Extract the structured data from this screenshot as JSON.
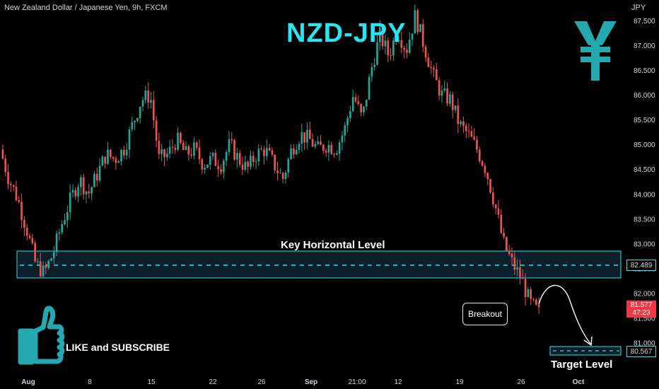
{
  "header": {
    "symbol": "New Zealand Dollar / Japanese Yen, 9h, FXCM",
    "currency": "JPY",
    "title": "NZD-JPY"
  },
  "annotations": {
    "key_level_label": "Key Horizontal Level",
    "target_label": "Target Level",
    "breakout_label": "Breakout",
    "cta": "LIKE and SUBSCRIBE"
  },
  "price_tags": {
    "key_level": "82.489",
    "target": "80.567",
    "current_price": "81.577",
    "countdown": "47:23"
  },
  "icons": [
    "yen-icon",
    "thumbs-up-icon",
    "arrow-curve-icon"
  ],
  "colors": {
    "up": "#26a69a",
    "down": "#ef5350",
    "accent": "#25e6f1",
    "current": "#f23645"
  },
  "chart_data": {
    "type": "candlestick",
    "y_axis_ticks": [
      "87.500",
      "87.000",
      "86.500",
      "86.000",
      "85.500",
      "85.000",
      "84.500",
      "84.000",
      "83.500",
      "83.000",
      "82.500",
      "82.000",
      "81.500",
      "81.000"
    ],
    "x_axis_ticks": [
      "Aug",
      "8",
      "15",
      "22",
      "26",
      "Sep",
      "21:00",
      "12",
      "19",
      "26",
      "Oct"
    ],
    "ylim": [
      80.35,
      87.8
    ],
    "key_level": 82.489,
    "key_zone": [
      82.18,
      82.78
    ],
    "target_level": 80.567,
    "current_price": 81.577,
    "grid": false,
    "close_path": [
      84.9,
      84.3,
      83.9,
      83.3,
      82.6,
      82.4,
      82.8,
      83.4,
      83.9,
      84.3,
      84.0,
      84.4,
      84.8,
      84.7,
      84.9,
      85.4,
      85.9,
      86.0,
      84.7,
      84.8,
      85.1,
      84.8,
      84.9,
      84.6,
      84.7,
      84.6,
      85.0,
      84.7,
      84.5,
      84.8,
      84.9,
      84.6,
      84.3,
      84.9,
      85.2,
      85.1,
      84.9,
      85.0,
      84.9,
      85.3,
      86.0,
      85.5,
      86.5,
      87.2,
      86.8,
      87.3,
      86.9,
      87.6,
      87.0,
      86.4,
      86.0,
      85.9,
      85.4,
      85.2,
      84.9,
      84.5,
      83.8,
      83.0,
      82.6,
      82.3,
      81.8,
      81.6
    ]
  }
}
